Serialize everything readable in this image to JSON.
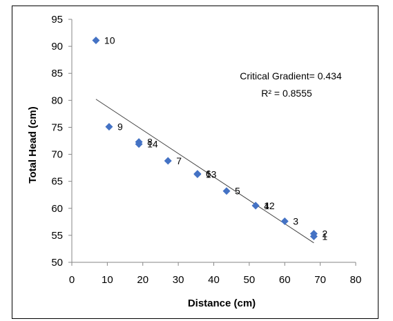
{
  "chart_data": {
    "type": "scatter",
    "xlabel": "Distance (cm)",
    "ylabel": "Total Head (cm)",
    "xlim": [
      0,
      80
    ],
    "ylim": [
      50,
      95
    ],
    "xticks": [
      0,
      10,
      20,
      30,
      40,
      50,
      60,
      70,
      80
    ],
    "yticks": [
      50,
      55,
      60,
      65,
      70,
      75,
      80,
      85,
      90,
      95
    ],
    "grid": false,
    "marker_color": "#4472C4",
    "marker": "diamond",
    "points": [
      {
        "label": "1",
        "x": 68.2,
        "y": 54.8
      },
      {
        "label": "2",
        "x": 68.2,
        "y": 55.3
      },
      {
        "label": "3",
        "x": 60.0,
        "y": 57.6
      },
      {
        "label": "4",
        "x": 51.8,
        "y": 60.5
      },
      {
        "label": "5",
        "x": 43.6,
        "y": 63.2
      },
      {
        "label": "6",
        "x": 35.4,
        "y": 66.4
      },
      {
        "label": "7",
        "x": 27.1,
        "y": 68.8
      },
      {
        "label": "8",
        "x": 18.9,
        "y": 72.3
      },
      {
        "label": "9",
        "x": 10.5,
        "y": 75.1
      },
      {
        "label": "10",
        "x": 6.8,
        "y": 91.1
      },
      {
        "label": "12",
        "x": 51.8,
        "y": 60.5
      },
      {
        "label": "13",
        "x": 35.4,
        "y": 66.3
      },
      {
        "label": "14",
        "x": 18.9,
        "y": 71.9
      }
    ],
    "trendline": {
      "type": "linear",
      "x": [
        6.8,
        68.2
      ],
      "y": [
        80.2,
        53.6
      ],
      "color": "#404040"
    },
    "annotation": {
      "line1": "Critical Gradient= 0.434",
      "line2": "R² = 0.8555"
    }
  }
}
